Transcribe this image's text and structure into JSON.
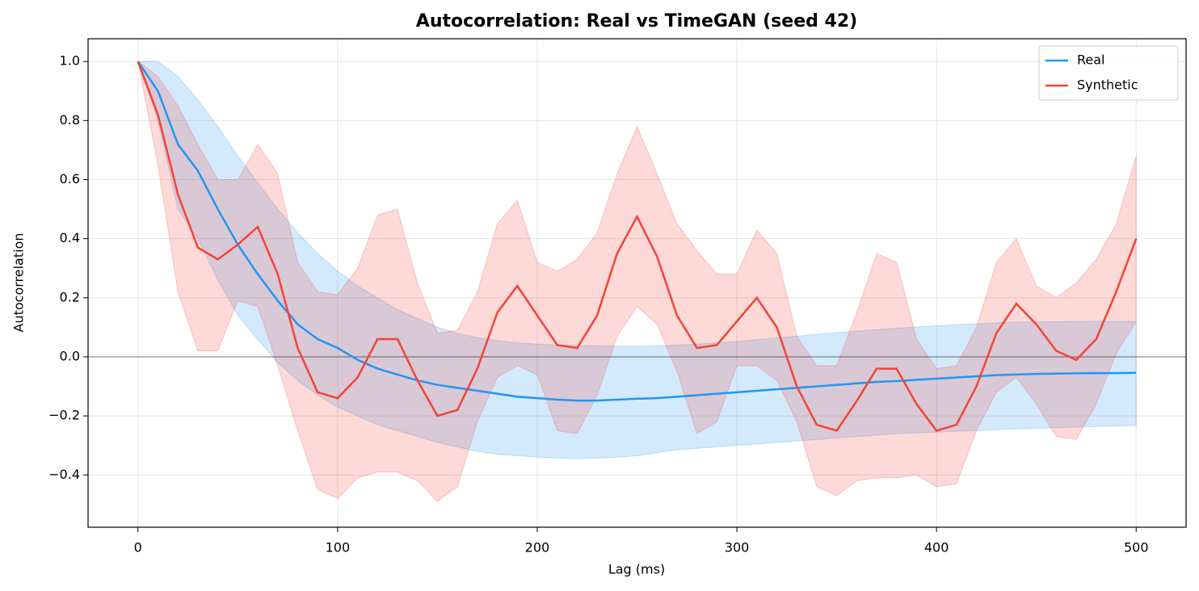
{
  "chart_data": {
    "type": "line",
    "title": "Autocorrelation: Real vs TimeGAN (seed 42)",
    "xlabel": "Lag (ms)",
    "ylabel": "Autocorrelation",
    "x": [
      0,
      10,
      20,
      30,
      40,
      50,
      60,
      70,
      80,
      90,
      100,
      110,
      120,
      130,
      140,
      150,
      160,
      170,
      180,
      190,
      200,
      210,
      220,
      230,
      240,
      250,
      260,
      270,
      280,
      290,
      300,
      310,
      320,
      330,
      340,
      350,
      360,
      370,
      380,
      390,
      400,
      410,
      420,
      430,
      440,
      450,
      460,
      470,
      480,
      490,
      500
    ],
    "series": [
      {
        "name": "Real",
        "color": "#2196f3",
        "values": [
          1.0,
          0.9,
          0.72,
          0.63,
          0.5,
          0.38,
          0.28,
          0.19,
          0.11,
          0.06,
          0.03,
          -0.01,
          -0.04,
          -0.06,
          -0.08,
          -0.095,
          -0.105,
          -0.115,
          -0.125,
          -0.135,
          -0.14,
          -0.145,
          -0.148,
          -0.148,
          -0.145,
          -0.142,
          -0.14,
          -0.135,
          -0.13,
          -0.125,
          -0.12,
          -0.115,
          -0.11,
          -0.105,
          -0.1,
          -0.095,
          -0.09,
          -0.085,
          -0.082,
          -0.078,
          -0.074,
          -0.07,
          -0.066,
          -0.062,
          -0.06,
          -0.058,
          -0.057,
          -0.056,
          -0.055,
          -0.055,
          -0.054
        ],
        "upper": [
          1.0,
          1.0,
          0.95,
          0.87,
          0.78,
          0.68,
          0.59,
          0.5,
          0.42,
          0.35,
          0.29,
          0.24,
          0.2,
          0.16,
          0.13,
          0.1,
          0.08,
          0.065,
          0.055,
          0.047,
          0.043,
          0.04,
          0.038,
          0.037,
          0.036,
          0.036,
          0.037,
          0.04,
          0.043,
          0.047,
          0.052,
          0.058,
          0.064,
          0.07,
          0.076,
          0.082,
          0.087,
          0.092,
          0.097,
          0.101,
          0.105,
          0.109,
          0.112,
          0.115,
          0.117,
          0.118,
          0.119,
          0.12,
          0.12,
          0.12,
          0.12
        ],
        "lower": [
          1.0,
          0.8,
          0.5,
          0.4,
          0.26,
          0.14,
          0.06,
          -0.02,
          -0.08,
          -0.13,
          -0.17,
          -0.2,
          -0.23,
          -0.25,
          -0.27,
          -0.29,
          -0.305,
          -0.32,
          -0.33,
          -0.335,
          -0.34,
          -0.343,
          -0.345,
          -0.343,
          -0.34,
          -0.335,
          -0.325,
          -0.315,
          -0.31,
          -0.305,
          -0.3,
          -0.295,
          -0.29,
          -0.285,
          -0.28,
          -0.275,
          -0.27,
          -0.265,
          -0.26,
          -0.258,
          -0.255,
          -0.252,
          -0.25,
          -0.247,
          -0.244,
          -0.242,
          -0.24,
          -0.238,
          -0.236,
          -0.234,
          -0.232
        ]
      },
      {
        "name": "Synthetic",
        "color": "#f44336",
        "values": [
          1.0,
          0.82,
          0.55,
          0.37,
          0.33,
          0.38,
          0.44,
          0.28,
          0.03,
          -0.12,
          -0.14,
          -0.07,
          0.06,
          0.06,
          -0.08,
          -0.2,
          -0.18,
          -0.04,
          0.15,
          0.24,
          0.14,
          0.04,
          0.03,
          0.14,
          0.35,
          0.475,
          0.34,
          0.14,
          0.03,
          0.04,
          0.12,
          0.2,
          0.1,
          -0.1,
          -0.23,
          -0.25,
          -0.15,
          -0.04,
          -0.04,
          -0.16,
          -0.25,
          -0.23,
          -0.1,
          0.08,
          0.18,
          0.11,
          0.02,
          -0.01,
          0.06,
          0.22,
          0.4
        ],
        "upper": [
          1.0,
          0.95,
          0.85,
          0.72,
          0.6,
          0.6,
          0.72,
          0.62,
          0.32,
          0.22,
          0.21,
          0.3,
          0.48,
          0.5,
          0.25,
          0.08,
          0.09,
          0.22,
          0.45,
          0.53,
          0.32,
          0.29,
          0.33,
          0.42,
          0.62,
          0.78,
          0.62,
          0.45,
          0.36,
          0.28,
          0.28,
          0.43,
          0.35,
          0.07,
          -0.03,
          -0.03,
          0.15,
          0.35,
          0.32,
          0.06,
          -0.04,
          -0.03,
          0.1,
          0.32,
          0.4,
          0.24,
          0.2,
          0.25,
          0.33,
          0.45,
          0.68
        ],
        "lower": [
          1.0,
          0.65,
          0.22,
          0.02,
          0.02,
          0.19,
          0.17,
          -0.03,
          -0.25,
          -0.45,
          -0.48,
          -0.41,
          -0.39,
          -0.39,
          -0.42,
          -0.49,
          -0.44,
          -0.22,
          -0.07,
          -0.03,
          -0.06,
          -0.25,
          -0.26,
          -0.13,
          0.07,
          0.17,
          0.11,
          -0.05,
          -0.26,
          -0.22,
          -0.03,
          -0.03,
          -0.08,
          -0.22,
          -0.44,
          -0.47,
          -0.42,
          -0.41,
          -0.41,
          -0.4,
          -0.44,
          -0.43,
          -0.25,
          -0.12,
          -0.07,
          -0.16,
          -0.27,
          -0.28,
          -0.16,
          0.01,
          0.12
        ]
      }
    ],
    "reference_line": 0,
    "xlim": [
      -25,
      525
    ],
    "ylim": [
      -0.577,
      1.077
    ],
    "xticks": [
      0,
      100,
      200,
      300,
      400,
      500
    ],
    "yticks": [
      {
        "value": -0.4,
        "label": "−0.4"
      },
      {
        "value": -0.2,
        "label": "−0.2"
      },
      {
        "value": 0,
        "label": "0.0"
      },
      0.2,
      0.4,
      0.6,
      0.8,
      {
        "value": 1,
        "label": "1.0"
      }
    ],
    "grid": true,
    "legend": "upper right"
  }
}
